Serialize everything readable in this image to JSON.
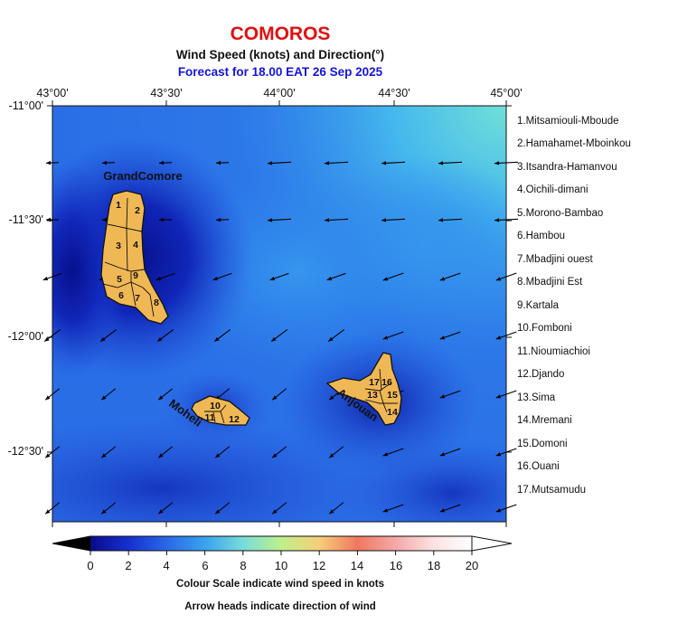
{
  "header": {
    "title": "COMOROS",
    "title_color": "#e01010",
    "subtitle": "Wind Speed (knots) and Direction(°)",
    "forecast": "Forecast for  18.00 EAT 26 Sep 2025",
    "forecast_color": "#1414e0"
  },
  "axes": {
    "longitudes": [
      "43°00'",
      "43°30'",
      "44°00'",
      "44°30'",
      "45°00'"
    ],
    "latitudes": [
      "-11°00'",
      "-11°30'",
      "-12°00'",
      "-12°30'"
    ]
  },
  "islands": {
    "grande_comore": "GrandComore",
    "moheli": "Moheli",
    "anjouan": "Anjouan",
    "region_numbers": {
      "grande_comore": [
        "1",
        "2",
        "3",
        "4",
        "5",
        "6",
        "7",
        "8",
        "9"
      ],
      "moheli": [
        "10",
        "11",
        "12"
      ],
      "anjouan": [
        "13",
        "14",
        "15",
        "16",
        "17"
      ]
    }
  },
  "regions": [
    "1.Mitsamiouli-Mboude",
    "2.Hamahamet-Mboinkou",
    "3.Itsandra-Hamanvou",
    "4.Oichili-dimani",
    "5.Morono-Bambao",
    "6.Hambou",
    "7.Mbadjini ouest",
    "8.Mbadjini Est",
    "9.Kartala",
    "10.Fomboni",
    "11.Nioumiachioi",
    "12.Djando",
    "13.Sima",
    "14.Mremani",
    "15.Domoni",
    "16.Ouani",
    "17.Mutsamudu"
  ],
  "colorbar": {
    "ticks": [
      "0",
      "2",
      "4",
      "6",
      "8",
      "10",
      "12",
      "14",
      "16",
      "18",
      "20"
    ],
    "min": 0,
    "max": 20,
    "colors": [
      "#0a0a8c",
      "#1530d0",
      "#2a68e8",
      "#3aa2ee",
      "#78dcda",
      "#bff08a",
      "#f6ce7a",
      "#f07860",
      "#f4a8a8",
      "#fde2e2",
      "#ffffff"
    ]
  },
  "notes": {
    "scale": "Colour Scale indicate wind speed in knots",
    "arrows": "Arrow heads indicate direction of wind"
  }
}
